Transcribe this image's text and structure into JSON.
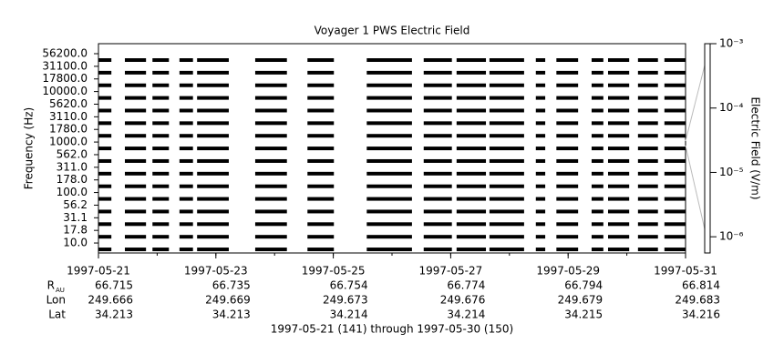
{
  "chart_data": {
    "type": "spectrogram",
    "title": "Voyager 1 PWS Electric Field",
    "ylabel": "Frequency (Hz)",
    "y2label": "Electric Field (V/m)",
    "caption": "1997-05-21 (141) through 1997-05-30 (150)",
    "channels": [
      "56200.0",
      "31100.0",
      "17800.0",
      "10000.0",
      "5620.0",
      "3110.0",
      "1780.0",
      "1000.0",
      "562.0",
      "311.0",
      "178.0",
      "100.0",
      "56.2",
      "31.1",
      "17.8",
      "10.0"
    ],
    "xlim": [
      0,
      10
    ],
    "xticks": [
      {
        "value": 0,
        "label": "1997-05-21"
      },
      {
        "value": 2,
        "label": "1997-05-23"
      },
      {
        "value": 4,
        "label": "1997-05-25"
      },
      {
        "value": 6,
        "label": "1997-05-27"
      },
      {
        "value": 8,
        "label": "1997-05-29"
      },
      {
        "value": 10,
        "label": "1997-05-31"
      }
    ],
    "segments": [
      [
        0,
        0.22
      ],
      [
        0.45,
        0.81
      ],
      [
        0.92,
        1.2
      ],
      [
        1.38,
        1.61
      ],
      [
        1.68,
        2.22
      ],
      [
        2.67,
        3.21
      ],
      [
        3.56,
        4.01
      ],
      [
        4.57,
        5.34
      ],
      [
        5.54,
        6.02
      ],
      [
        6.1,
        6.6
      ],
      [
        6.66,
        7.25
      ],
      [
        7.45,
        7.61
      ],
      [
        7.8,
        8.17
      ],
      [
        8.4,
        8.6
      ],
      [
        8.68,
        9.04
      ],
      [
        9.19,
        9.53
      ],
      [
        9.64,
        10
      ]
    ],
    "color": "#000000",
    "y2lim": [
      5.6e-07,
      0.001
    ],
    "y2ticks": [
      {
        "value": 0.001,
        "label": "10⁻³"
      },
      {
        "value": 0.0001,
        "label": "10⁻⁴"
      },
      {
        "value": 1e-05,
        "label": "10⁻⁵"
      },
      {
        "value": 1e-06,
        "label": "10⁻⁶"
      }
    ],
    "y2log": true,
    "ephemeris": [
      {
        "label": "R",
        "sub": "AU",
        "values": [
          66.715,
          66.735,
          66.754,
          66.774,
          66.794,
          66.814
        ]
      },
      {
        "label": "Lon",
        "values": [
          249.666,
          249.669,
          249.673,
          249.676,
          249.679,
          249.683
        ]
      },
      {
        "label": "Lat",
        "values": [
          34.213,
          34.213,
          34.214,
          34.214,
          34.215,
          34.216
        ]
      }
    ]
  }
}
